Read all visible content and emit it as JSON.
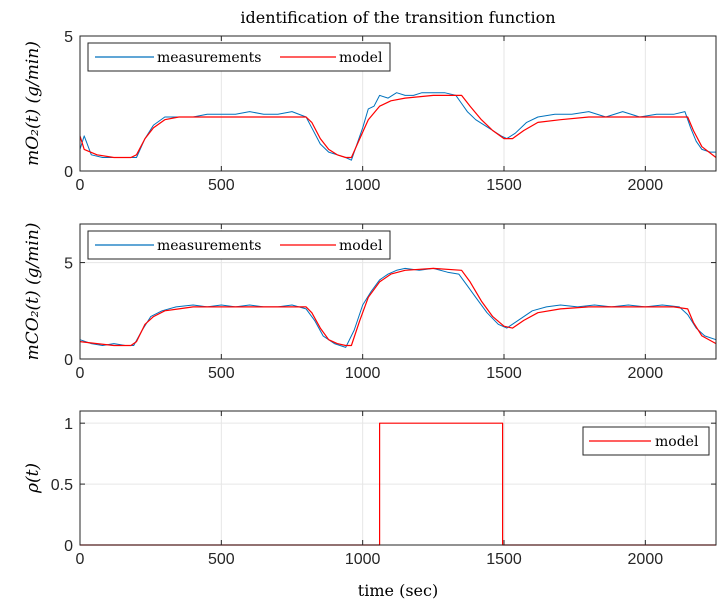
{
  "figure": {
    "title": "identification of the transition function",
    "xlabel": "time (sec)"
  },
  "chart_data": [
    {
      "type": "line",
      "ylabel": "mO₂(t) (g/min)",
      "xlim": [
        0,
        2250
      ],
      "ylim": [
        0,
        5
      ],
      "xticks": [
        0,
        500,
        1000,
        1500,
        2000
      ],
      "yticks": [
        0,
        5
      ],
      "grid": true,
      "legend": {
        "placement": "top-left",
        "orientation": "horizontal",
        "entries": [
          "measurements",
          "model"
        ]
      },
      "series": [
        {
          "name": "measurements",
          "color": "#0072BD",
          "x": [
            0,
            15,
            40,
            80,
            120,
            160,
            200,
            230,
            260,
            300,
            350,
            400,
            450,
            500,
            550,
            600,
            650,
            700,
            750,
            800,
            820,
            850,
            880,
            910,
            940,
            960,
            980,
            1000,
            1020,
            1040,
            1060,
            1090,
            1120,
            1150,
            1180,
            1210,
            1250,
            1290,
            1330,
            1350,
            1370,
            1400,
            1430,
            1460,
            1490,
            1510,
            1540,
            1580,
            1620,
            1680,
            1740,
            1800,
            1860,
            1920,
            1980,
            2040,
            2100,
            2140,
            2160,
            2180,
            2200,
            2230,
            2250
          ],
          "y": [
            0.8,
            1.3,
            0.6,
            0.5,
            0.5,
            0.5,
            0.5,
            1.2,
            1.7,
            2.0,
            2.0,
            2.0,
            2.1,
            2.1,
            2.1,
            2.2,
            2.1,
            2.1,
            2.2,
            2.0,
            1.6,
            1.0,
            0.7,
            0.6,
            0.5,
            0.4,
            1.0,
            1.6,
            2.3,
            2.4,
            2.8,
            2.7,
            2.9,
            2.8,
            2.8,
            2.9,
            2.9,
            2.9,
            2.8,
            2.5,
            2.2,
            1.9,
            1.7,
            1.5,
            1.3,
            1.2,
            1.4,
            1.8,
            2.0,
            2.1,
            2.1,
            2.2,
            2.0,
            2.2,
            2.0,
            2.1,
            2.1,
            2.2,
            1.6,
            1.1,
            0.8,
            0.7,
            0.7
          ]
        },
        {
          "name": "model",
          "color": "#FF0000",
          "x": [
            0,
            15,
            60,
            120,
            180,
            200,
            230,
            260,
            300,
            350,
            400,
            500,
            600,
            700,
            800,
            820,
            850,
            880,
            910,
            940,
            960,
            990,
            1020,
            1060,
            1100,
            1150,
            1250,
            1350,
            1380,
            1420,
            1460,
            1500,
            1530,
            1570,
            1620,
            1700,
            1800,
            1900,
            2000,
            2100,
            2150,
            2170,
            2200,
            2250
          ],
          "y": [
            1.3,
            0.8,
            0.6,
            0.5,
            0.5,
            0.6,
            1.2,
            1.6,
            1.9,
            2.0,
            2.0,
            2.0,
            2.0,
            2.0,
            2.0,
            1.8,
            1.2,
            0.8,
            0.6,
            0.5,
            0.5,
            1.2,
            1.9,
            2.4,
            2.6,
            2.7,
            2.8,
            2.8,
            2.4,
            1.9,
            1.5,
            1.2,
            1.2,
            1.5,
            1.8,
            1.9,
            2.0,
            2.0,
            2.0,
            2.0,
            2.0,
            1.5,
            0.9,
            0.5
          ]
        }
      ]
    },
    {
      "type": "line",
      "ylabel": "mCO₂(t) (g/min)",
      "xlim": [
        0,
        2250
      ],
      "ylim": [
        0,
        7
      ],
      "xticks": [
        0,
        500,
        1000,
        1500,
        2000
      ],
      "yticks": [
        0,
        5
      ],
      "grid": true,
      "legend": {
        "placement": "top-left",
        "orientation": "horizontal",
        "entries": [
          "measurements",
          "model"
        ]
      },
      "series": [
        {
          "name": "measurements",
          "color": "#0072BD",
          "x": [
            0,
            40,
            80,
            120,
            160,
            190,
            220,
            250,
            290,
            340,
            400,
            450,
            500,
            550,
            600,
            650,
            700,
            750,
            800,
            830,
            860,
            900,
            940,
            970,
            1000,
            1030,
            1060,
            1090,
            1120,
            1150,
            1200,
            1250,
            1300,
            1340,
            1370,
            1400,
            1440,
            1480,
            1510,
            1550,
            1600,
            1650,
            1700,
            1760,
            1820,
            1880,
            1940,
            2000,
            2060,
            2120,
            2150,
            2180,
            2210,
            2250
          ],
          "y": [
            1.0,
            0.8,
            0.7,
            0.8,
            0.7,
            0.7,
            1.5,
            2.2,
            2.5,
            2.7,
            2.8,
            2.7,
            2.8,
            2.7,
            2.8,
            2.7,
            2.7,
            2.8,
            2.6,
            2.0,
            1.2,
            0.8,
            0.6,
            1.5,
            2.8,
            3.5,
            4.1,
            4.4,
            4.6,
            4.7,
            4.6,
            4.7,
            4.5,
            4.4,
            3.8,
            3.2,
            2.4,
            1.8,
            1.6,
            2.0,
            2.5,
            2.7,
            2.8,
            2.7,
            2.8,
            2.7,
            2.8,
            2.7,
            2.8,
            2.7,
            2.3,
            1.6,
            1.2,
            1.0
          ]
        },
        {
          "name": "model",
          "color": "#FF0000",
          "x": [
            0,
            60,
            120,
            180,
            200,
            230,
            260,
            300,
            350,
            400,
            500,
            600,
            700,
            800,
            820,
            850,
            880,
            910,
            940,
            960,
            990,
            1020,
            1060,
            1100,
            1150,
            1250,
            1350,
            1380,
            1420,
            1460,
            1500,
            1530,
            1570,
            1620,
            1700,
            1800,
            1900,
            2000,
            2100,
            2150,
            2170,
            2200,
            2250
          ],
          "y": [
            0.9,
            0.8,
            0.7,
            0.7,
            0.9,
            1.8,
            2.2,
            2.5,
            2.6,
            2.7,
            2.7,
            2.7,
            2.7,
            2.7,
            2.4,
            1.6,
            1.0,
            0.8,
            0.7,
            0.7,
            2.0,
            3.2,
            4.0,
            4.4,
            4.6,
            4.7,
            4.6,
            4.0,
            3.0,
            2.2,
            1.7,
            1.6,
            2.0,
            2.4,
            2.6,
            2.7,
            2.7,
            2.7,
            2.7,
            2.6,
            1.9,
            1.2,
            0.8
          ]
        }
      ]
    },
    {
      "type": "line",
      "ylabel": "ρ(t)",
      "xlim": [
        0,
        2250
      ],
      "ylim": [
        0,
        1.1
      ],
      "xticks": [
        0,
        500,
        1000,
        1500,
        2000
      ],
      "yticks": [
        0,
        0.5,
        1
      ],
      "ytick_labels": [
        "0",
        "0.5",
        "1"
      ],
      "grid": true,
      "legend": {
        "placement": "top-right",
        "entries": [
          "model"
        ]
      },
      "series": [
        {
          "name": "model",
          "color": "#FF0000",
          "x": [
            0,
            1060,
            1060,
            1495,
            1495,
            2250
          ],
          "y": [
            0,
            0,
            1,
            1,
            0,
            0
          ]
        }
      ]
    }
  ]
}
